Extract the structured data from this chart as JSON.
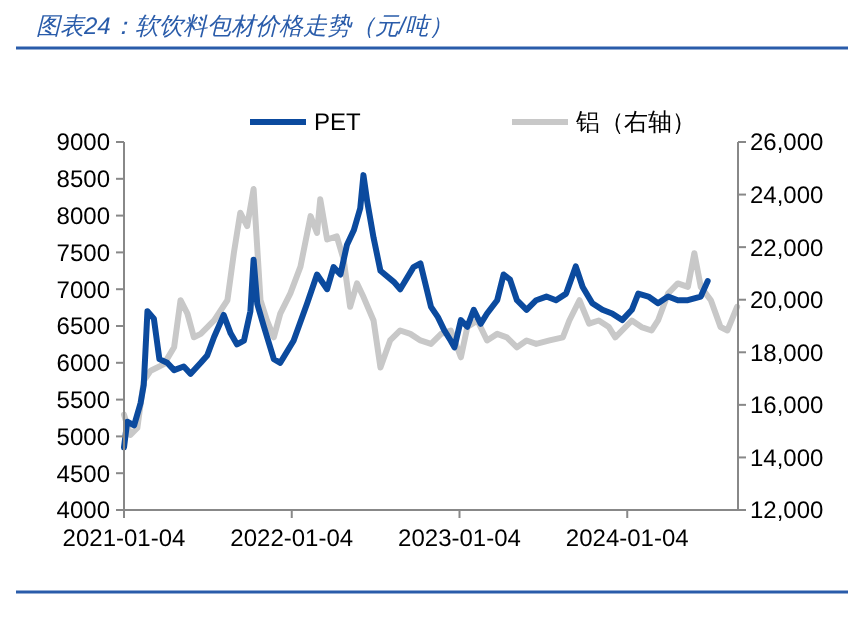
{
  "chart_data": {
    "type": "line",
    "title": "图表24：软饮料包材价格走势（元/吨）",
    "legend": "top",
    "grid": false,
    "line_style": "solid",
    "xlim": [
      "2021-01-04",
      "2024-09-01"
    ],
    "xticks": [
      "2021-01-04",
      "2022-01-04",
      "2023-01-04",
      "2024-01-04"
    ],
    "ylim": [
      4000,
      9000
    ],
    "yticks": [
      4000,
      4500,
      5000,
      5500,
      6000,
      6500,
      7000,
      7500,
      8000,
      8500,
      9000
    ],
    "y2lim": [
      12000,
      26000
    ],
    "y2ticks": [
      {
        "value": 12000,
        "label": "12,000"
      },
      {
        "value": 14000,
        "label": "14,000"
      },
      {
        "value": 16000,
        "label": "16,000"
      },
      {
        "value": 18000,
        "label": "18,000"
      },
      {
        "value": 20000,
        "label": "20,000"
      },
      {
        "value": 22000,
        "label": "22,000"
      },
      {
        "value": 24000,
        "label": "24,000"
      },
      {
        "value": 26000,
        "label": "26,000"
      }
    ],
    "series": [
      {
        "name": "PET",
        "color": "#0b4a9e",
        "x": [
          "2021-01-04",
          "2021-01-11",
          "2021-01-26",
          "2021-02-09",
          "2021-02-16",
          "2021-02-24",
          "2021-03-10",
          "2021-03-22",
          "2021-04-08",
          "2021-04-23",
          "2021-05-14",
          "2021-05-29",
          "2021-06-20",
          "2021-07-04",
          "2021-07-19",
          "2021-08-09",
          "2021-08-24",
          "2021-09-07",
          "2021-09-22",
          "2021-10-06",
          "2021-10-13",
          "2021-10-21",
          "2021-11-04",
          "2021-11-26",
          "2021-12-10",
          "2022-01-08",
          "2022-02-06",
          "2022-02-28",
          "2022-03-22",
          "2022-04-05",
          "2022-04-20",
          "2022-05-04",
          "2022-05-19",
          "2022-06-02",
          "2022-06-09",
          "2022-06-17",
          "2022-07-01",
          "2022-07-16",
          "2022-08-14",
          "2022-08-28",
          "2022-09-26",
          "2022-10-11",
          "2022-11-03",
          "2022-11-18",
          "2022-12-02",
          "2022-12-16",
          "2022-12-24",
          "2023-01-07",
          "2023-01-21",
          "2023-02-04",
          "2023-02-19",
          "2023-03-05",
          "2023-03-27",
          "2023-04-10",
          "2023-04-24",
          "2023-05-09",
          "2023-05-30",
          "2023-06-20",
          "2023-07-12",
          "2023-08-02",
          "2023-08-24",
          "2023-09-14",
          "2023-09-29",
          "2023-10-20",
          "2023-11-11",
          "2023-12-02",
          "2023-12-24",
          "2024-01-14",
          "2024-01-28",
          "2024-02-19",
          "2024-03-11",
          "2024-04-02",
          "2024-04-23",
          "2024-05-15",
          "2024-06-12",
          "2024-06-27"
        ],
        "values": [
          4850,
          5200,
          5150,
          5450,
          5700,
          6700,
          6600,
          6050,
          6000,
          5900,
          5950,
          5850,
          6000,
          6100,
          6350,
          6650,
          6400,
          6250,
          6300,
          6700,
          7400,
          6800,
          6500,
          6050,
          6000,
          6300,
          6800,
          7200,
          7000,
          7300,
          7200,
          7600,
          7800,
          8100,
          8550,
          8200,
          7700,
          7250,
          7100,
          7000,
          7300,
          7350,
          6760,
          6620,
          6440,
          6300,
          6210,
          6580,
          6490,
          6720,
          6530,
          6670,
          6850,
          7200,
          7130,
          6850,
          6720,
          6850,
          6900,
          6850,
          6940,
          7310,
          7030,
          6810,
          6720,
          6670,
          6580,
          6720,
          6940,
          6900,
          6810,
          6900,
          6850,
          6850,
          6900,
          7110
        ]
      },
      {
        "name": "铝（右轴）",
        "color": "#c8c8c8",
        "axis": "y2",
        "x": [
          "2021-01-04",
          "2021-01-18",
          "2021-02-02",
          "2021-02-16",
          "2021-03-03",
          "2021-04-01",
          "2021-04-23",
          "2021-05-07",
          "2021-05-22",
          "2021-06-05",
          "2021-06-20",
          "2021-07-19",
          "2021-08-17",
          "2021-08-31",
          "2021-09-14",
          "2021-09-29",
          "2021-10-13",
          "2021-10-28",
          "2021-11-11",
          "2021-11-26",
          "2021-12-10",
          "2022-01-01",
          "2022-01-23",
          "2022-02-14",
          "2022-02-28",
          "2022-03-07",
          "2022-03-22",
          "2022-04-12",
          "2022-04-27",
          "2022-05-11",
          "2022-05-26",
          "2022-06-09",
          "2022-07-01",
          "2022-07-16",
          "2022-08-06",
          "2022-08-28",
          "2022-09-19",
          "2022-10-11",
          "2022-11-03",
          "2022-11-25",
          "2022-12-16",
          "2023-01-07",
          "2023-01-21",
          "2023-02-12",
          "2023-03-05",
          "2023-03-27",
          "2023-04-17",
          "2023-05-09",
          "2023-05-30",
          "2023-06-20",
          "2023-07-19",
          "2023-08-17",
          "2023-08-31",
          "2023-09-22",
          "2023-10-13",
          "2023-11-03",
          "2023-11-25",
          "2023-12-09",
          "2024-01-14",
          "2024-02-04",
          "2024-02-26",
          "2024-03-11",
          "2024-04-02",
          "2024-04-23",
          "2024-05-15",
          "2024-05-29",
          "2024-06-12",
          "2024-07-04",
          "2024-07-25",
          "2024-08-09",
          "2024-08-30"
        ],
        "values": [
          15630,
          14860,
          15120,
          16910,
          17300,
          17550,
          18190,
          19980,
          19470,
          18570,
          18700,
          19210,
          19980,
          21770,
          23310,
          22800,
          24210,
          19980,
          19210,
          18570,
          19470,
          20240,
          21260,
          23180,
          22540,
          23820,
          22290,
          22410,
          21520,
          19730,
          20620,
          20110,
          19210,
          17420,
          18450,
          18830,
          18700,
          18450,
          18320,
          18700,
          18830,
          17810,
          18960,
          19210,
          18450,
          18700,
          18570,
          18190,
          18450,
          18320,
          18450,
          18570,
          19210,
          19980,
          19090,
          19210,
          18960,
          18570,
          19210,
          18960,
          18830,
          19210,
          20240,
          20620,
          20490,
          21770,
          20490,
          19980,
          18960,
          18830,
          19730
        ]
      }
    ]
  }
}
